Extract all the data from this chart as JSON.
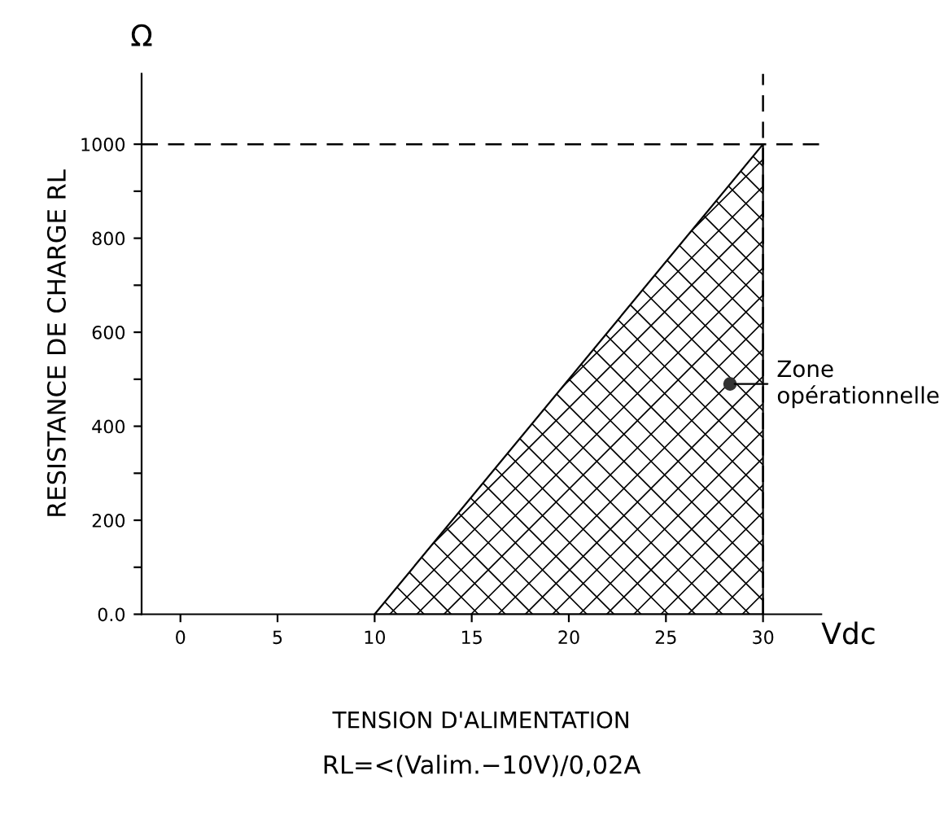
{
  "chart_data": {
    "type": "area",
    "xlabel": "TENSION D'ALIMENTATION",
    "ylabel": "RESISTANCE DE CHARGE RL",
    "series": [
      {
        "x": [
          10,
          30
        ],
        "values": [
          0,
          1000
        ],
        "color": "#000000"
      }
    ],
    "xlim": [
      -2,
      33
    ],
    "xticks": [
      0,
      5,
      10,
      15,
      20,
      25,
      30
    ],
    "ylim": [
      0,
      1150
    ],
    "yticks": [
      {
        "value": 0,
        "label": "0.0"
      },
      {
        "value": 100,
        "label": null
      },
      200,
      {
        "value": 300,
        "label": null
      },
      400,
      {
        "value": 500,
        "label": null
      },
      600,
      {
        "value": 700,
        "label": null
      },
      800,
      {
        "value": 900,
        "label": null
      },
      1000
    ],
    "ref_lines": [
      {
        "axis": "y",
        "value": 1000,
        "line_style": "dashed"
      },
      {
        "axis": "x",
        "value": 30,
        "line_style": "dashed"
      }
    ],
    "annotations": [
      "Ω",
      "Vdc",
      "RL=<(Valim.−10V)/0,02A",
      {
        "text": "Zone\nopérationnelle",
        "x": 28.3,
        "y": 490
      }
    ],
    "grid": false,
    "legend": false
  }
}
